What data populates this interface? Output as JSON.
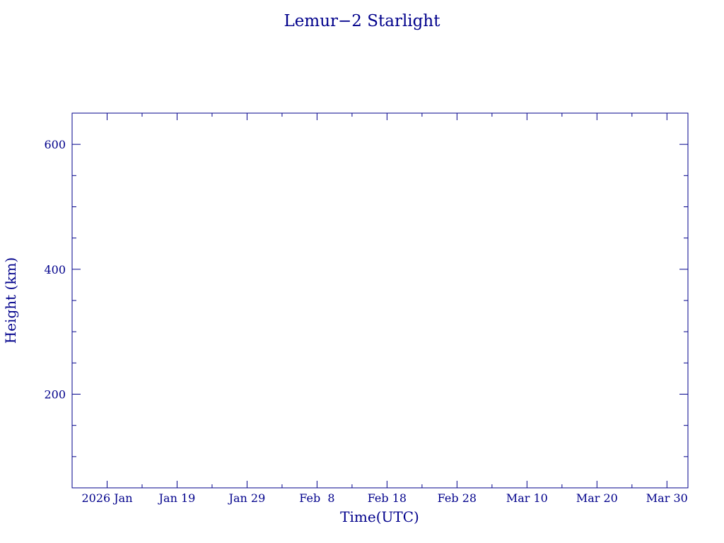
{
  "chart_data": {
    "type": "line",
    "title": "Lemur−2 Starlight",
    "xlabel": "Time(UTC)",
    "ylabel": "Height (km)",
    "x_scale": "time",
    "xlim": [
      "2026-01-04",
      "2026-04-02"
    ],
    "ylim": [
      50,
      650
    ],
    "x_ticks": [
      {
        "date": "2026-01-09",
        "label": "2026 Jan"
      },
      {
        "date": "2026-01-19",
        "label": "Jan 19"
      },
      {
        "date": "2026-01-29",
        "label": "Jan 29"
      },
      {
        "date": "2026-02-08",
        "label": "Feb  8"
      },
      {
        "date": "2026-02-18",
        "label": "Feb 18"
      },
      {
        "date": "2026-02-28",
        "label": "Feb 28"
      },
      {
        "date": "2026-03-10",
        "label": "Mar 10"
      },
      {
        "date": "2026-03-20",
        "label": "Mar 20"
      },
      {
        "date": "2026-03-30",
        "label": "Mar 30"
      }
    ],
    "y_ticks": [
      200,
      400,
      600
    ],
    "y_minor_ticks": [
      100,
      150,
      250,
      300,
      350,
      450,
      500,
      550
    ],
    "series": [],
    "grid": false,
    "colors": {
      "axis": "#00008b",
      "text": "#00008b",
      "background": "#ffffff"
    }
  }
}
